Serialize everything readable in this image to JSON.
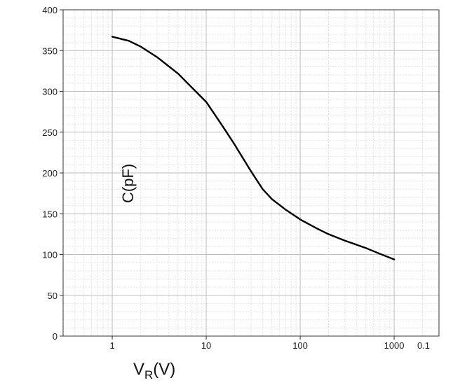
{
  "chart_data": {
    "type": "line",
    "xlabel": "V",
    "xlabel_sub": "R",
    "xlabel_unit": "(V)",
    "ylabel": "C(pF)",
    "x_scale": "log",
    "xlim": [
      0.3,
      3000
    ],
    "ylim": [
      0,
      400
    ],
    "grid": true,
    "x_ticks": [
      {
        "value": 1,
        "label": "1"
      },
      {
        "value": 10,
        "label": "10"
      },
      {
        "value": 100,
        "label": "100"
      },
      {
        "value": 1000,
        "label": "1000"
      }
    ],
    "y_ticks": [
      {
        "value": 400,
        "label": "400"
      },
      {
        "value": 350,
        "label": "350"
      },
      {
        "value": 300,
        "label": "300"
      },
      {
        "value": 250,
        "label": "250"
      },
      {
        "value": 200,
        "label": "200"
      },
      {
        "value": 150,
        "label": "150"
      },
      {
        "value": 100,
        "label": "100"
      },
      {
        "value": 50,
        "label": "50"
      },
      {
        "value": 0,
        "label": "0"
      }
    ],
    "x_extra_label": "0.1",
    "series": [
      {
        "x": [
          1,
          1.5,
          2,
          3,
          5,
          7,
          10,
          15,
          20,
          30,
          40,
          50,
          70,
          100,
          150,
          200,
          300,
          500,
          700,
          1000
        ],
        "y": [
          367,
          362,
          355,
          342,
          322,
          305,
          287,
          257,
          235,
          202,
          180,
          168,
          155,
          143,
          132,
          125,
          117,
          108,
          101,
          94
        ]
      }
    ]
  }
}
